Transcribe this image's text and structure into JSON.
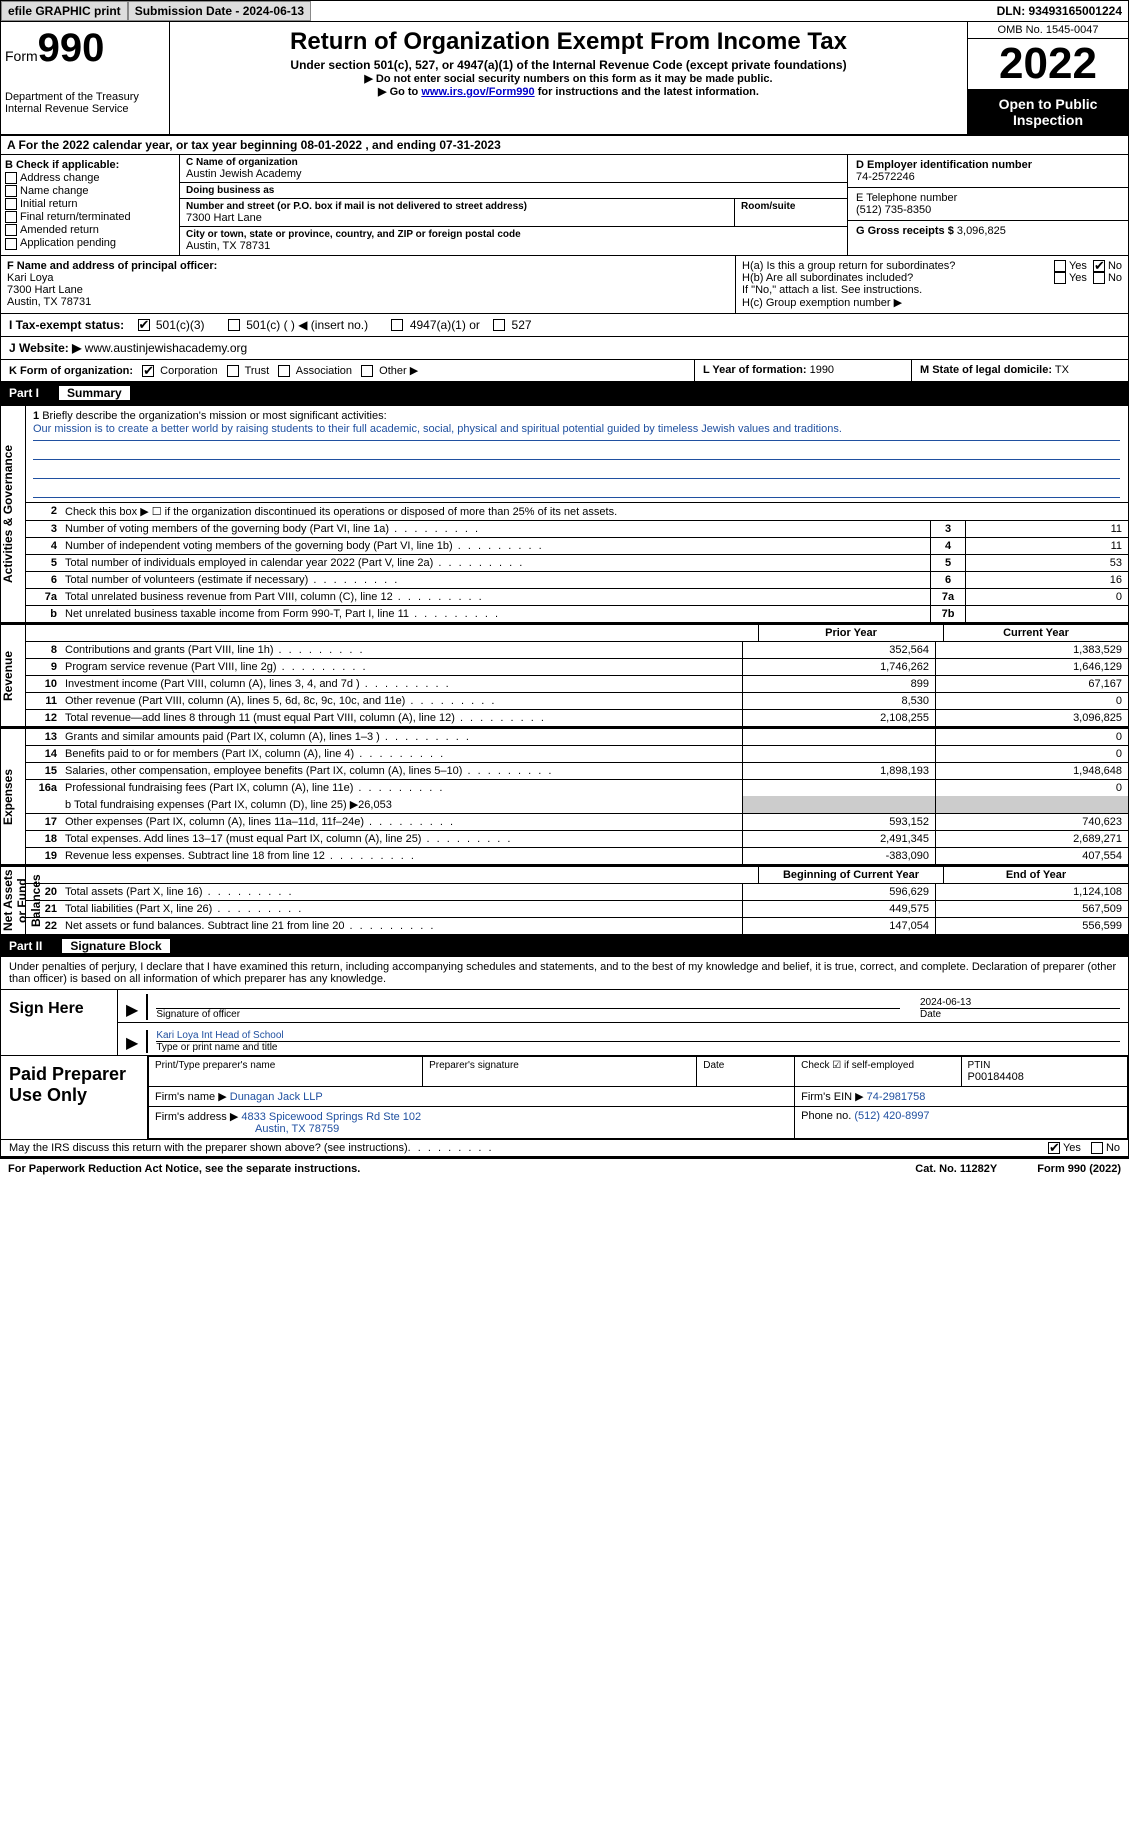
{
  "top": {
    "efile": "efile GRAPHIC print",
    "submission": "Submission Date - 2024-06-13",
    "dln": "DLN: 93493165001224"
  },
  "header": {
    "form_word": "Form",
    "form_num": "990",
    "title": "Return of Organization Exempt From Income Tax",
    "sub1": "Under section 501(c), 527, or 4947(a)(1) of the Internal Revenue Code (except private foundations)",
    "sub2": "▶ Do not enter social security numbers on this form as it may be made public.",
    "sub3_pre": "▶ Go to ",
    "sub3_link": "www.irs.gov/Form990",
    "sub3_post": " for instructions and the latest information.",
    "dept": "Department of the Treasury Internal Revenue Service",
    "omb": "OMB No. 1545-0047",
    "year": "2022",
    "open": "Open to Public Inspection"
  },
  "lineA": "A For the 2022 calendar year, or tax year beginning 08-01-2022   , and ending 07-31-2023",
  "sectionB": {
    "label": "B Check if applicable:",
    "opts": [
      "Address change",
      "Name change",
      "Initial return",
      "Final return/terminated",
      "Amended return",
      "Application pending"
    ]
  },
  "sectionC": {
    "name_label": "C Name of organization",
    "name": "Austin Jewish Academy",
    "dba_label": "Doing business as",
    "dba": "",
    "addr_label": "Number and street (or P.O. box if mail is not delivered to street address)",
    "addr": "7300 Hart Lane",
    "room_label": "Room/suite",
    "city_label": "City or town, state or province, country, and ZIP or foreign postal code",
    "city": "Austin, TX  78731"
  },
  "sectionD": {
    "ein_label": "D Employer identification number",
    "ein": "74-2572246",
    "phone_label": "E Telephone number",
    "phone": "(512) 735-8350",
    "gross_label": "G Gross receipts $",
    "gross": "3,096,825"
  },
  "sectionF": {
    "label": "F Name and address of principal officer:",
    "name": "Kari Loya",
    "addr1": "7300 Hart Lane",
    "addr2": "Austin, TX  78731"
  },
  "sectionH": {
    "ha": "H(a)  Is this a group return for subordinates?",
    "hb": "H(b)  Are all subordinates included?",
    "hb_note": "If \"No,\" attach a list. See instructions.",
    "hc": "H(c)  Group exemption number ▶",
    "yes": "Yes",
    "no": "No"
  },
  "sectionI": {
    "label": "I   Tax-exempt status:",
    "o1": "501(c)(3)",
    "o2": "501(c) (  ) ◀ (insert no.)",
    "o3": "4947(a)(1) or",
    "o4": "527"
  },
  "sectionJ": {
    "label": "J   Website: ▶",
    "val": "www.austinjewishacademy.org"
  },
  "sectionK": {
    "label": "K Form of organization:",
    "o1": "Corporation",
    "o2": "Trust",
    "o3": "Association",
    "o4": "Other ▶"
  },
  "sectionL": {
    "label": "L Year of formation:",
    "val": "1990"
  },
  "sectionM": {
    "label": "M State of legal domicile:",
    "val": "TX"
  },
  "part1": {
    "num": "Part I",
    "title": "Summary"
  },
  "summary": {
    "side1": "Activities & Governance",
    "line1_label": "Briefly describe the organization's mission or most significant activities:",
    "line1_text": "Our mission is to create a better world by raising students to their full academic, social, physical and spiritual potential guided by timeless Jewish values and traditions.",
    "line2": "Check this box ▶ ☐ if the organization discontinued its operations or disposed of more than 25% of its net assets.",
    "rows_gov": [
      {
        "n": "3",
        "d": "Number of voting members of the governing body (Part VI, line 1a)",
        "b": "3",
        "v": "11"
      },
      {
        "n": "4",
        "d": "Number of independent voting members of the governing body (Part VI, line 1b)",
        "b": "4",
        "v": "11"
      },
      {
        "n": "5",
        "d": "Total number of individuals employed in calendar year 2022 (Part V, line 2a)",
        "b": "5",
        "v": "53"
      },
      {
        "n": "6",
        "d": "Total number of volunteers (estimate if necessary)",
        "b": "6",
        "v": "16"
      },
      {
        "n": "7a",
        "d": "Total unrelated business revenue from Part VIII, column (C), line 12",
        "b": "7a",
        "v": "0"
      },
      {
        "n": "b",
        "d": "Net unrelated business taxable income from Form 990-T, Part I, line 11",
        "b": "7b",
        "v": ""
      }
    ],
    "side2": "Revenue",
    "col_prior": "Prior Year",
    "col_current": "Current Year",
    "rows_rev": [
      {
        "n": "8",
        "d": "Contributions and grants (Part VIII, line 1h)",
        "p": "352,564",
        "c": "1,383,529"
      },
      {
        "n": "9",
        "d": "Program service revenue (Part VIII, line 2g)",
        "p": "1,746,262",
        "c": "1,646,129"
      },
      {
        "n": "10",
        "d": "Investment income (Part VIII, column (A), lines 3, 4, and 7d )",
        "p": "899",
        "c": "67,167"
      },
      {
        "n": "11",
        "d": "Other revenue (Part VIII, column (A), lines 5, 6d, 8c, 9c, 10c, and 11e)",
        "p": "8,530",
        "c": "0"
      },
      {
        "n": "12",
        "d": "Total revenue—add lines 8 through 11 (must equal Part VIII, column (A), line 12)",
        "p": "2,108,255",
        "c": "3,096,825"
      }
    ],
    "side3": "Expenses",
    "rows_exp": [
      {
        "n": "13",
        "d": "Grants and similar amounts paid (Part IX, column (A), lines 1–3 )",
        "p": "",
        "c": "0"
      },
      {
        "n": "14",
        "d": "Benefits paid to or for members (Part IX, column (A), line 4)",
        "p": "",
        "c": "0"
      },
      {
        "n": "15",
        "d": "Salaries, other compensation, employee benefits (Part IX, column (A), lines 5–10)",
        "p": "1,898,193",
        "c": "1,948,648"
      },
      {
        "n": "16a",
        "d": "Professional fundraising fees (Part IX, column (A), line 11e)",
        "p": "",
        "c": "0"
      }
    ],
    "line16b": "b  Total fundraising expenses (Part IX, column (D), line 25) ▶26,053",
    "rows_exp2": [
      {
        "n": "17",
        "d": "Other expenses (Part IX, column (A), lines 11a–11d, 11f–24e)",
        "p": "593,152",
        "c": "740,623"
      },
      {
        "n": "18",
        "d": "Total expenses. Add lines 13–17 (must equal Part IX, column (A), line 25)",
        "p": "2,491,345",
        "c": "2,689,271"
      },
      {
        "n": "19",
        "d": "Revenue less expenses. Subtract line 18 from line 12",
        "p": "-383,090",
        "c": "407,554"
      }
    ],
    "side4": "Net Assets or Fund Balances",
    "col_begin": "Beginning of Current Year",
    "col_end": "End of Year",
    "rows_net": [
      {
        "n": "20",
        "d": "Total assets (Part X, line 16)",
        "p": "596,629",
        "c": "1,124,108"
      },
      {
        "n": "21",
        "d": "Total liabilities (Part X, line 26)",
        "p": "449,575",
        "c": "567,509"
      },
      {
        "n": "22",
        "d": "Net assets or fund balances. Subtract line 21 from line 20",
        "p": "147,054",
        "c": "556,599"
      }
    ]
  },
  "part2": {
    "num": "Part II",
    "title": "Signature Block"
  },
  "sig": {
    "perjury": "Under penalties of perjury, I declare that I have examined this return, including accompanying schedules and statements, and to the best of my knowledge and belief, it is true, correct, and complete. Declaration of preparer (other than officer) is based on all information of which preparer has any knowledge.",
    "sign_here": "Sign Here",
    "sig_officer": "Signature of officer",
    "sig_date": "2024-06-13",
    "date_label": "Date",
    "officer_name": "Kari Loya  Int Head of School",
    "type_name": "Type or print name and title",
    "paid_prep": "Paid Preparer Use Only",
    "print_name_label": "Print/Type preparer's name",
    "print_name": "",
    "prep_sig_label": "Preparer's signature",
    "date2_label": "Date",
    "check_self": "Check ☑ if self-employed",
    "ptin_label": "PTIN",
    "ptin": "P00184408",
    "firm_name_label": "Firm's name    ▶",
    "firm_name": "Dunagan Jack LLP",
    "firm_ein_label": "Firm's EIN ▶",
    "firm_ein": "74-2981758",
    "firm_addr_label": "Firm's address ▶",
    "firm_addr1": "4833 Spicewood Springs Rd Ste 102",
    "firm_addr2": "Austin, TX  78759",
    "firm_phone_label": "Phone no.",
    "firm_phone": "(512) 420-8997",
    "may_irs": "May the IRS discuss this return with the preparer shown above? (see instructions)",
    "yes": "Yes",
    "no": "No"
  },
  "footer": {
    "pra": "For Paperwork Reduction Act Notice, see the separate instructions.",
    "cat": "Cat. No. 11282Y",
    "formref": "Form 990 (2022)"
  },
  "colors": {
    "link": "#0000cc",
    "blue_text": "#2050a0",
    "black": "#000000",
    "gray_btn": "#dddddd"
  }
}
